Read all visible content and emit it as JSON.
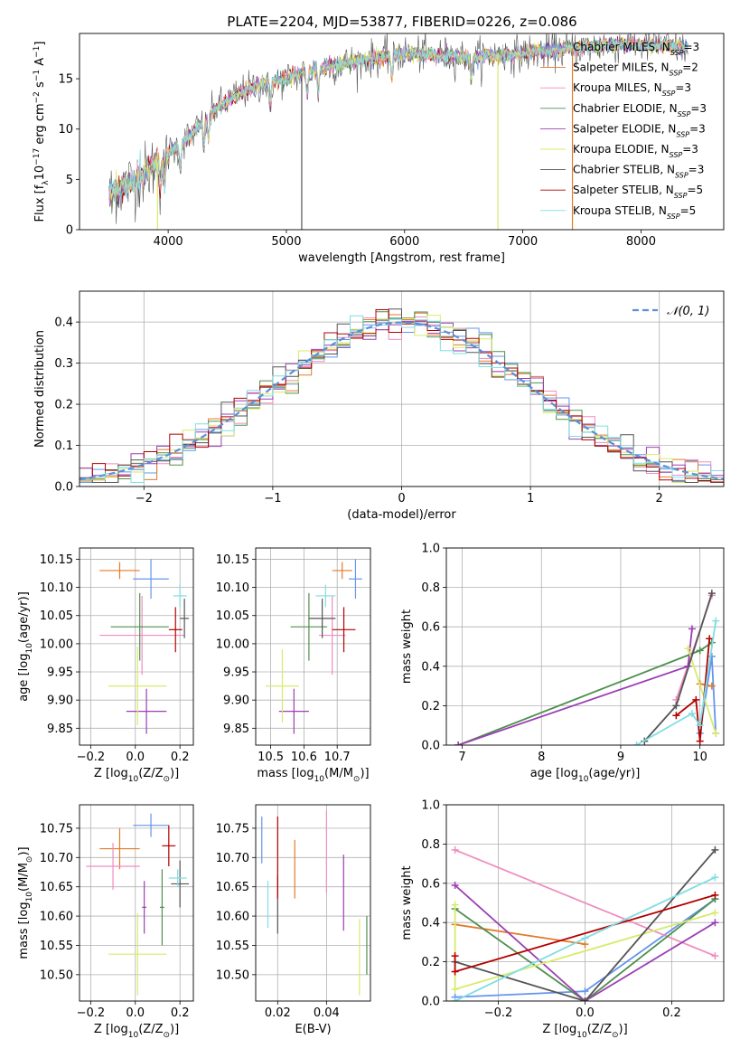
{
  "figure_title": "PLATE=2204, MJD=53877, FIBERID=0226, z=0.086",
  "model_colors": [
    "#6495ed",
    "#e37a2b",
    "#f08cc0",
    "#4f8f4f",
    "#9b3fb5",
    "#d9ea6a",
    "#555555",
    "#b30000",
    "#7fdde3"
  ],
  "chart_data": [
    {
      "id": "spectrum",
      "type": "line",
      "xlabel": "wavelength [Angstrom, rest frame]",
      "ylabel": "Flux [f_λ10^-17 erg cm^-2 s^-1 A^-1]",
      "xlim": [
        3250,
        8700
      ],
      "ylim": [
        0,
        19.5
      ],
      "xticks": [
        4000,
        5000,
        6000,
        7000,
        8000
      ],
      "yticks": [
        0,
        5,
        10,
        15
      ],
      "grid": false,
      "legend_position": "right",
      "legend": [
        {
          "label": "Chabrier MILES, N",
          "sub": "SSP",
          "suffix": "=3"
        },
        {
          "label": "Salpeter MILES, N",
          "sub": "SSP",
          "suffix": "=2"
        },
        {
          "label": "Kroupa MILES, N",
          "sub": "SSP",
          "suffix": "=3"
        },
        {
          "label": "Chabrier ELODIE, N",
          "sub": "SSP",
          "suffix": "=3"
        },
        {
          "label": "Salpeter ELODIE, N",
          "sub": "SSP",
          "suffix": "=3"
        },
        {
          "label": "Kroupa ELODIE, N",
          "sub": "SSP",
          "suffix": "=3"
        },
        {
          "label": "Chabrier STELIB, N",
          "sub": "SSP",
          "suffix": "=3"
        },
        {
          "label": "Salpeter STELIB, N",
          "sub": "SSP",
          "suffix": "=5"
        },
        {
          "label": "Kroupa STELIB, N",
          "sub": "SSP",
          "suffix": "=5"
        }
      ],
      "continuum_nodes": [
        [
          3500,
          3.5
        ],
        [
          3800,
          5.5
        ],
        [
          4000,
          7.5
        ],
        [
          4200,
          9.5
        ],
        [
          4400,
          12.0
        ],
        [
          4600,
          13.5
        ],
        [
          4800,
          14.5
        ],
        [
          5000,
          15.0
        ],
        [
          5200,
          15.8
        ],
        [
          5500,
          16.5
        ],
        [
          5800,
          17.2
        ],
        [
          6000,
          17.5
        ],
        [
          6300,
          17.3
        ],
        [
          6600,
          17.2
        ],
        [
          7000,
          17.5
        ],
        [
          7400,
          18.0
        ],
        [
          7800,
          18.4
        ],
        [
          8200,
          18.3
        ],
        [
          8400,
          18.0
        ]
      ],
      "dropouts": [
        {
          "x": 3910,
          "model": 5
        },
        {
          "x": 6790,
          "model": 5
        },
        {
          "x": 7420,
          "model": 1
        },
        {
          "x": 5130,
          "model": 6
        }
      ]
    },
    {
      "id": "residuals",
      "type": "histogram",
      "xlabel": "(data-model)/error",
      "ylabel": "Normed distribution",
      "xlim": [
        -2.5,
        2.5
      ],
      "ylim": [
        0,
        0.475
      ],
      "xticks": [
        -2,
        -1,
        0,
        1,
        2
      ],
      "yticks": [
        0.0,
        0.1,
        0.2,
        0.3,
        0.4
      ],
      "grid": true,
      "legend_position": "top-right",
      "reference_curve": {
        "label": "𝒩(0, 1)",
        "mean": 0,
        "sigma": 1,
        "color": "#5b8fd6"
      },
      "bin_width": 0.1
    },
    {
      "id": "age-vs-z",
      "type": "scatter",
      "xlabel": "Z [log10(Z/Z⊙)]",
      "ylabel": "age  [log10(age/yr)]",
      "xlim": [
        -0.25,
        0.26
      ],
      "ylim": [
        9.82,
        10.17
      ],
      "xticks": [
        -0.2,
        0.0,
        0.2
      ],
      "yticks": [
        9.85,
        9.9,
        9.95,
        10.0,
        10.05,
        10.1,
        10.15
      ],
      "grid": true,
      "points": [
        {
          "x": 0.07,
          "y": 10.115,
          "xerr": 0.08,
          "yerr": 0.035,
          "model": 0
        },
        {
          "x": -0.07,
          "y": 10.13,
          "xerr": 0.09,
          "yerr": 0.015,
          "model": 1
        },
        {
          "x": 0.03,
          "y": 10.015,
          "xerr": 0.19,
          "yerr": 0.07,
          "model": 2
        },
        {
          "x": 0.02,
          "y": 10.03,
          "xerr": 0.13,
          "yerr": 0.06,
          "model": 3
        },
        {
          "x": 0.05,
          "y": 9.88,
          "xerr": 0.09,
          "yerr": 0.04,
          "model": 4
        },
        {
          "x": 0.01,
          "y": 9.925,
          "xerr": 0.13,
          "yerr": 0.07,
          "model": 5
        },
        {
          "x": 0.22,
          "y": 10.045,
          "xerr": 0.02,
          "yerr": 0.035,
          "model": 6
        },
        {
          "x": 0.18,
          "y": 10.025,
          "xerr": 0.03,
          "yerr": 0.04,
          "model": 7
        },
        {
          "x": 0.2,
          "y": 10.085,
          "xerr": 0.03,
          "yerr": 0.02,
          "model": 8
        }
      ]
    },
    {
      "id": "age-vs-mass",
      "type": "scatter",
      "xlabel": "mass [log10(M/M⊙)]",
      "ylabel": "",
      "xlim": [
        10.455,
        10.8
      ],
      "ylim": [
        9.82,
        10.17
      ],
      "xticks": [
        10.5,
        10.6,
        10.7
      ],
      "yticks": [
        9.85,
        9.9,
        9.95,
        10.0,
        10.05,
        10.1,
        10.15
      ],
      "grid": true,
      "points": [
        {
          "x": 10.755,
          "y": 10.115,
          "xerr": 0.02,
          "yerr": 0.035,
          "model": 0
        },
        {
          "x": 10.715,
          "y": 10.13,
          "xerr": 0.03,
          "yerr": 0.015,
          "model": 1
        },
        {
          "x": 10.685,
          "y": 10.015,
          "xerr": 0.04,
          "yerr": 0.07,
          "model": 2
        },
        {
          "x": 10.615,
          "y": 10.03,
          "xerr": 0.055,
          "yerr": 0.06,
          "model": 3
        },
        {
          "x": 10.57,
          "y": 9.88,
          "xerr": 0.045,
          "yerr": 0.04,
          "model": 4
        },
        {
          "x": 10.535,
          "y": 9.925,
          "xerr": 0.05,
          "yerr": 0.065,
          "model": 5
        },
        {
          "x": 10.655,
          "y": 10.045,
          "xerr": 0.04,
          "yerr": 0.035,
          "model": 6
        },
        {
          "x": 10.72,
          "y": 10.025,
          "xerr": 0.035,
          "yerr": 0.04,
          "model": 7
        },
        {
          "x": 10.665,
          "y": 10.085,
          "xerr": 0.03,
          "yerr": 0.02,
          "model": 8
        }
      ]
    },
    {
      "id": "weight-vs-age",
      "type": "line",
      "xlabel": "age  [log10(age/yr)]",
      "ylabel": "mass weight",
      "xlim": [
        6.8,
        10.3
      ],
      "ylim": [
        0,
        1.0
      ],
      "xticks": [
        7,
        8,
        9,
        10
      ],
      "yticks": [
        0.0,
        0.2,
        0.4,
        0.6,
        0.8,
        1.0
      ],
      "grid": true,
      "series": [
        {
          "model": 0,
          "x": [
            10.0,
            10.15,
            10.2
          ],
          "y": [
            0.06,
            0.45,
            0.06
          ]
        },
        {
          "model": 1,
          "x": [
            10.0,
            10.15
          ],
          "y": [
            0.31,
            0.3
          ]
        },
        {
          "model": 2,
          "x": [
            9.7,
            10.15
          ],
          "y": [
            0.23,
            0.76
          ]
        },
        {
          "model": 3,
          "x": [
            6.95,
            10.0,
            10.15
          ],
          "y": [
            0.0,
            0.48,
            0.52
          ]
        },
        {
          "model": 4,
          "x": [
            6.95,
            9.85,
            9.9
          ],
          "y": [
            0.0,
            0.4,
            0.59
          ]
        },
        {
          "model": 5,
          "x": [
            9.85,
            10.2
          ],
          "y": [
            0.49,
            0.06
          ]
        },
        {
          "model": 6,
          "x": [
            9.3,
            9.7,
            10.15
          ],
          "y": [
            0.02,
            0.2,
            0.77
          ]
        },
        {
          "model": 7,
          "x": [
            9.7,
            9.95,
            10.0,
            10.12
          ],
          "y": [
            0.15,
            0.23,
            0.02,
            0.54
          ]
        },
        {
          "model": 8,
          "x": [
            9.2,
            9.9,
            10.0,
            10.2
          ],
          "y": [
            0.0,
            0.16,
            0.1,
            0.63
          ]
        }
      ]
    },
    {
      "id": "mass-vs-z",
      "type": "scatter",
      "xlabel": "Z [log10(Z/Z⊙)]",
      "ylabel": "mass [log10(M/M⊙)]",
      "xlim": [
        -0.25,
        0.26
      ],
      "ylim": [
        10.455,
        10.79
      ],
      "xticks": [
        -0.2,
        0.0,
        0.2
      ],
      "yticks": [
        10.5,
        10.55,
        10.6,
        10.65,
        10.7,
        10.75
      ],
      "grid": true,
      "points": [
        {
          "x": 0.07,
          "y": 10.755,
          "xerr": 0.08,
          "yerr": 0.02,
          "model": 0
        },
        {
          "x": -0.07,
          "y": 10.715,
          "xerr": 0.09,
          "yerr": 0.035,
          "model": 1
        },
        {
          "x": -0.1,
          "y": 10.685,
          "xerr": 0.12,
          "yerr": 0.04,
          "model": 2
        },
        {
          "x": 0.12,
          "y": 10.615,
          "xerr": 0.01,
          "yerr": 0.065,
          "model": 3
        },
        {
          "x": 0.04,
          "y": 10.615,
          "xerr": 0.01,
          "yerr": 0.045,
          "model": 4
        },
        {
          "x": 0.01,
          "y": 10.535,
          "xerr": 0.13,
          "yerr": 0.07,
          "model": 5
        },
        {
          "x": 0.2,
          "y": 10.655,
          "xerr": 0.04,
          "yerr": 0.04,
          "model": 6
        },
        {
          "x": 0.15,
          "y": 10.72,
          "xerr": 0.03,
          "yerr": 0.035,
          "model": 7
        },
        {
          "x": 0.19,
          "y": 10.665,
          "xerr": 0.04,
          "yerr": 0.015,
          "model": 8
        }
      ]
    },
    {
      "id": "mass-vs-ebv",
      "type": "scatter",
      "xlabel": "E(B-V)",
      "ylabel": "",
      "xlim": [
        0.011,
        0.058
      ],
      "ylim": [
        10.455,
        10.79
      ],
      "xticks": [
        0.02,
        0.04
      ],
      "yticks": [
        10.5,
        10.55,
        10.6,
        10.65,
        10.7,
        10.75
      ],
      "grid": true,
      "points": [
        {
          "x": 0.0135,
          "y": 10.73,
          "xerr": 0,
          "yerr": 0.04,
          "model": 0
        },
        {
          "x": 0.027,
          "y": 10.68,
          "xerr": 0,
          "yerr": 0.05,
          "model": 1
        },
        {
          "x": 0.04,
          "y": 10.71,
          "xerr": 0,
          "yerr": 0.07,
          "model": 2
        },
        {
          "x": 0.0565,
          "y": 10.55,
          "xerr": 0,
          "yerr": 0.05,
          "model": 3
        },
        {
          "x": 0.047,
          "y": 10.64,
          "xerr": 0,
          "yerr": 0.065,
          "model": 4
        },
        {
          "x": 0.0535,
          "y": 10.53,
          "xerr": 0,
          "yerr": 0.065,
          "model": 5
        },
        {
          "x": 0.02,
          "y": 10.62,
          "xerr": 0,
          "yerr": 0.05,
          "model": 6
        },
        {
          "x": 0.02,
          "y": 10.7,
          "xerr": 0,
          "yerr": 0.07,
          "model": 7
        },
        {
          "x": 0.016,
          "y": 10.62,
          "xerr": 0,
          "yerr": 0.04,
          "model": 8
        }
      ]
    },
    {
      "id": "weight-vs-z",
      "type": "line",
      "xlabel": "Z [log10(Z/Z⊙)]",
      "ylabel": "mass weight",
      "xlim": [
        -0.32,
        0.32
      ],
      "ylim": [
        0,
        1.0
      ],
      "xticks": [
        -0.2,
        0.0,
        0.2
      ],
      "yticks": [
        0.0,
        0.2,
        0.4,
        0.6,
        0.8,
        1.0
      ],
      "grid": true,
      "series": [
        {
          "model": 0,
          "x": [
            -0.3,
            0.0,
            0.3
          ],
          "y": [
            0.02,
            0.05,
            0.52
          ]
        },
        {
          "model": 1,
          "x": [
            -0.3,
            0.0
          ],
          "y": [
            0.39,
            0.29
          ]
        },
        {
          "model": 2,
          "x": [
            -0.3,
            0.3
          ],
          "y": [
            0.77,
            0.23
          ]
        },
        {
          "model": 3,
          "x": [
            -0.3,
            0.0,
            0.3
          ],
          "y": [
            0.47,
            0.0,
            0.52
          ]
        },
        {
          "model": 4,
          "x": [
            -0.3,
            0.0,
            0.3
          ],
          "y": [
            0.59,
            0.0,
            0.4
          ]
        },
        {
          "model": 5,
          "x": [
            -0.3,
            -0.3,
            0.3
          ],
          "y": [
            0.49,
            0.06,
            0.45
          ]
        },
        {
          "model": 6,
          "x": [
            -0.3,
            0.0,
            0.3
          ],
          "y": [
            0.2,
            0.0,
            0.77
          ]
        },
        {
          "model": 7,
          "x": [
            -0.3,
            -0.3,
            0.3
          ],
          "y": [
            0.23,
            0.15,
            0.54
          ]
        },
        {
          "model": 8,
          "x": [
            -0.3,
            0.0,
            0.3
          ],
          "y": [
            0.0,
            0.32,
            0.63
          ]
        }
      ]
    }
  ]
}
